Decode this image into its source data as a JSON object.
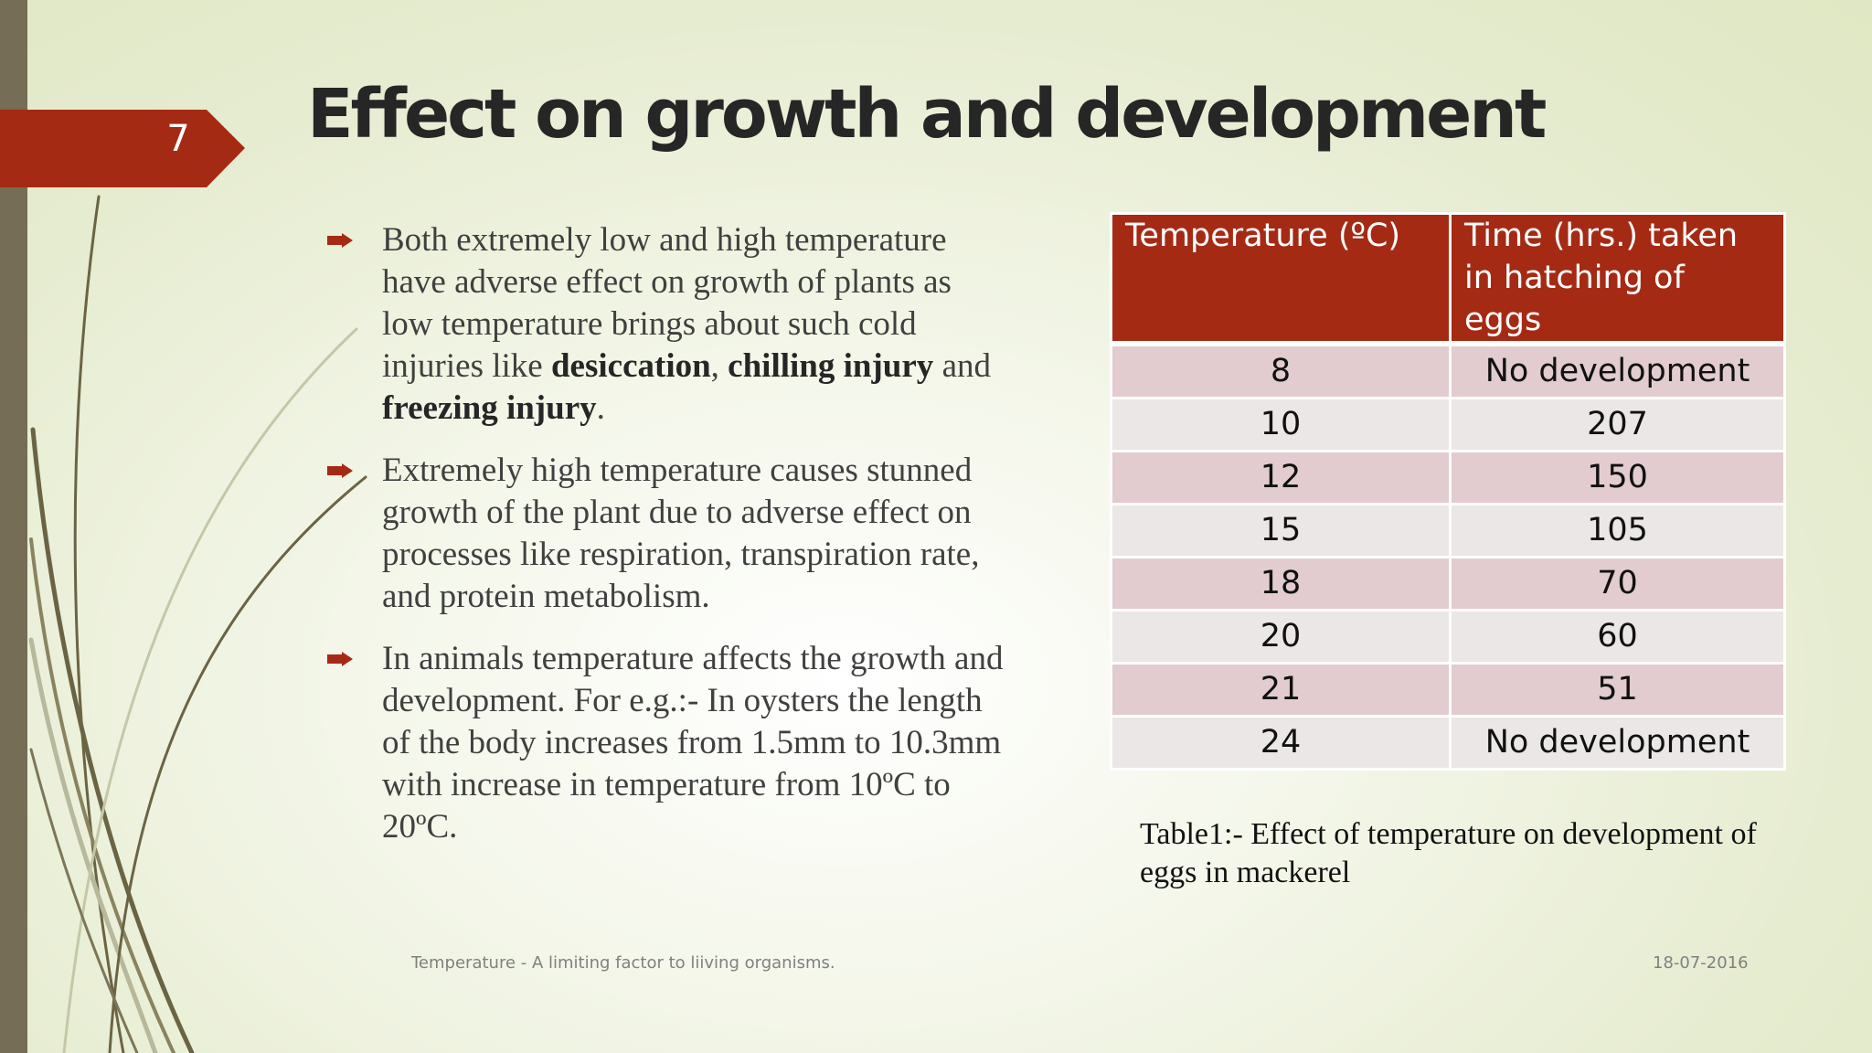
{
  "slide": {
    "number": "7",
    "title": "Effect on growth and development"
  },
  "bullets": [
    {
      "icon": "arrow-bullet-icon",
      "segments": [
        {
          "text": "Both extremely low and high temperature have adverse effect on growth of plants as low temperature brings about such cold injuries like ",
          "bold": false
        },
        {
          "text": "desiccation",
          "bold": true
        },
        {
          "text": ", ",
          "bold": false
        },
        {
          "text": "chilling injury",
          "bold": true
        },
        {
          "text": " and ",
          "bold": false
        },
        {
          "text": "freezing injury",
          "bold": true
        },
        {
          "text": ".",
          "bold": false
        }
      ]
    },
    {
      "icon": "arrow-bullet-icon",
      "segments": [
        {
          "text": "Extremely high temperature causes stunned growth of the plant due to adverse effect on processes like respiration, transpiration rate, and protein metabolism.",
          "bold": false
        }
      ]
    },
    {
      "icon": "arrow-bullet-icon",
      "segments": [
        {
          "text": "In animals temperature affects the growth and development. For e.g.:- In oysters the length of the body increases from 1.5mm to 10.3mm with increase in temperature from 10ºC to 20ºC.",
          "bold": false
        }
      ]
    }
  ],
  "table": {
    "headers": [
      "Temperature (ºC)",
      "Time (hrs.) taken in hatching of eggs"
    ],
    "rows": [
      [
        "8",
        "No development"
      ],
      [
        "10",
        "207"
      ],
      [
        "12",
        "150"
      ],
      [
        "15",
        "105"
      ],
      [
        "18",
        "70"
      ],
      [
        "20",
        "60"
      ],
      [
        "21",
        "51"
      ],
      [
        "24",
        "No development"
      ]
    ],
    "caption": "Table1:- Effect of temperature on development of eggs in mackerel"
  },
  "footer": {
    "left": "Temperature - A limiting factor to liiving organisms.",
    "right": "18-07-2016"
  },
  "colors": {
    "accent": "#a52a14",
    "left_bar": "#756d55",
    "row_odd": "#e2ccd0",
    "row_even": "#ece7e7"
  }
}
